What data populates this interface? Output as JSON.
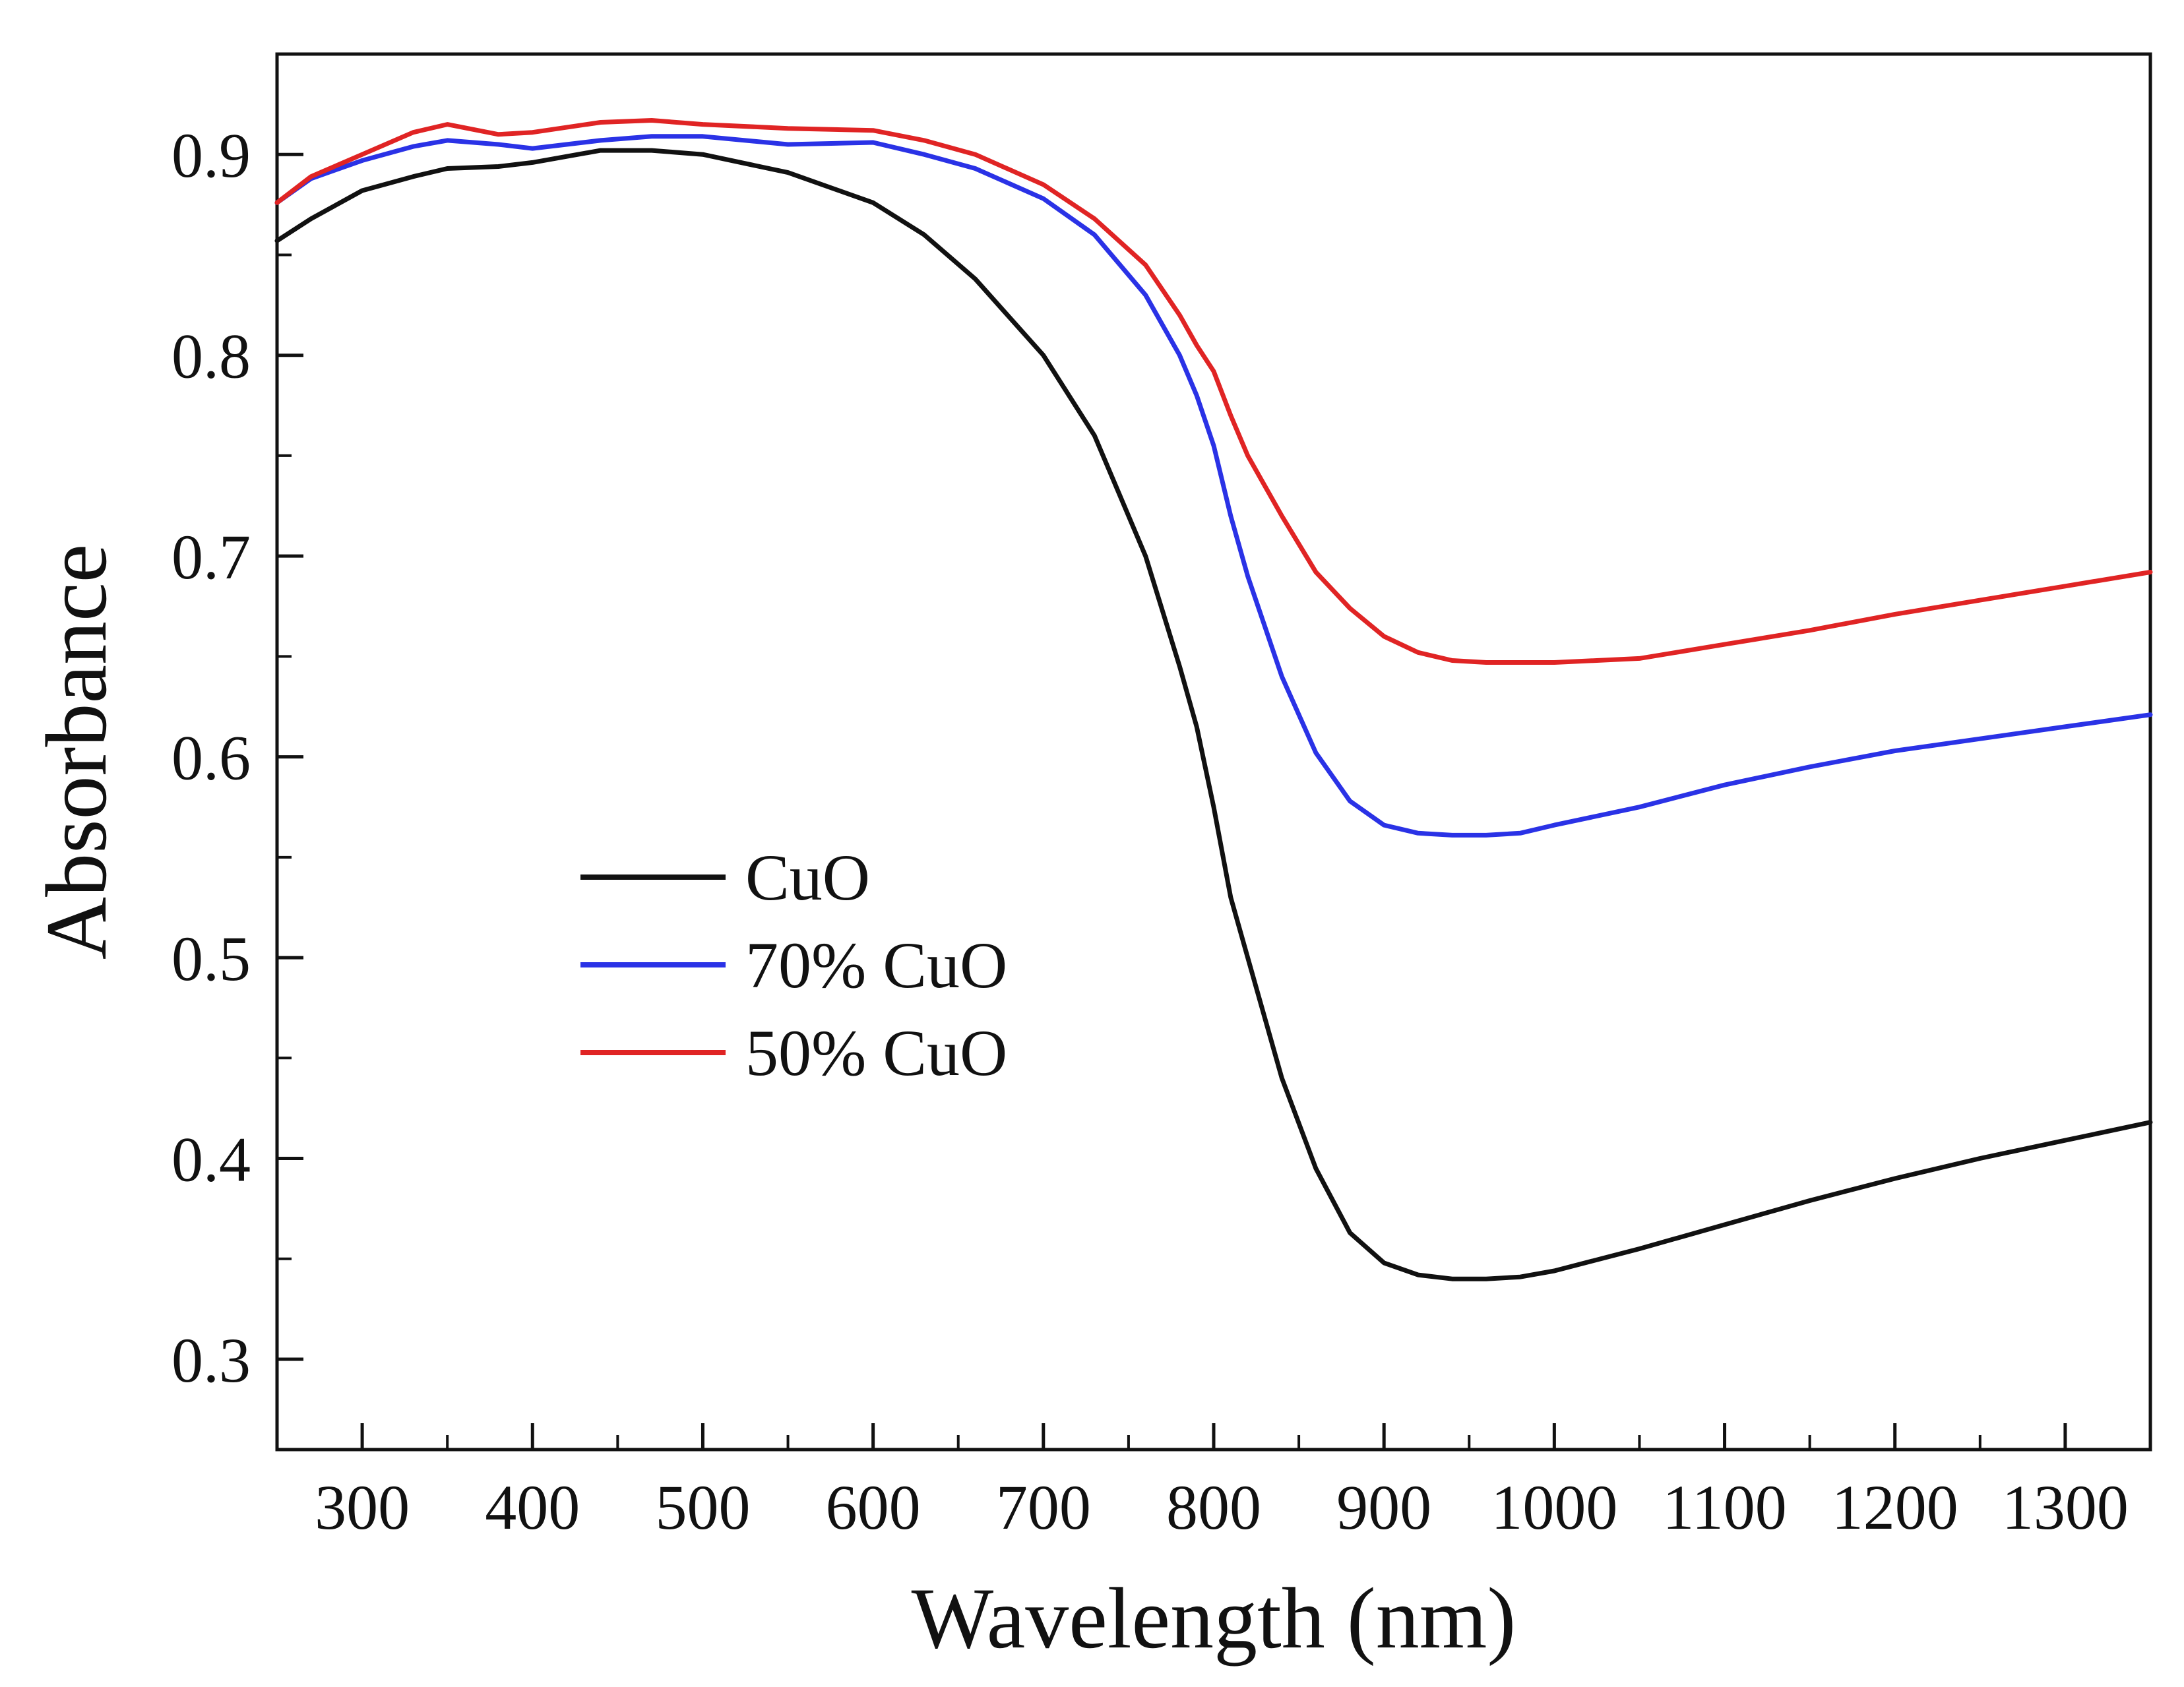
{
  "chart_data": {
    "type": "line",
    "title": "",
    "xlabel": "Wavelength (nm)",
    "ylabel": "Absorbance",
    "xlim": [
      250,
      1350
    ],
    "ylim": [
      0.255,
      0.95
    ],
    "xticks": [
      300,
      400,
      500,
      600,
      700,
      800,
      900,
      1000,
      1100,
      1200,
      1300
    ],
    "xtick_labels": [
      "300",
      "400",
      "500",
      "600",
      "700",
      "800",
      "900",
      "1000",
      "1100",
      "1200",
      "1300"
    ],
    "yticks": [
      0.3,
      0.4,
      0.5,
      0.6,
      0.7,
      0.8,
      0.9
    ],
    "ytick_labels": [
      "0.3",
      "0.4",
      "0.5",
      "0.6",
      "0.7",
      "0.8",
      "0.9"
    ],
    "grid": false,
    "legend_position": "center-left",
    "series": [
      {
        "name": "CuO",
        "color": "#111111",
        "x": [
          250,
          270,
          300,
          330,
          350,
          380,
          400,
          440,
          470,
          500,
          550,
          600,
          630,
          660,
          700,
          730,
          760,
          780,
          790,
          800,
          810,
          820,
          840,
          860,
          880,
          900,
          920,
          940,
          960,
          980,
          1000,
          1050,
          1100,
          1150,
          1200,
          1250,
          1300,
          1350
        ],
        "y": [
          0.857,
          0.868,
          0.882,
          0.889,
          0.893,
          0.894,
          0.896,
          0.902,
          0.902,
          0.9,
          0.891,
          0.876,
          0.86,
          0.838,
          0.8,
          0.76,
          0.7,
          0.645,
          0.615,
          0.575,
          0.53,
          0.5,
          0.44,
          0.395,
          0.363,
          0.348,
          0.342,
          0.34,
          0.34,
          0.341,
          0.344,
          0.355,
          0.367,
          0.379,
          0.39,
          0.4,
          0.409,
          0.418
        ]
      },
      {
        "name": "70% CuO",
        "color": "#2a32e6",
        "x": [
          250,
          270,
          300,
          330,
          350,
          380,
          400,
          440,
          470,
          500,
          550,
          600,
          630,
          660,
          700,
          730,
          760,
          780,
          790,
          800,
          810,
          820,
          840,
          860,
          880,
          900,
          920,
          940,
          960,
          980,
          1000,
          1050,
          1100,
          1150,
          1200,
          1250,
          1300,
          1350
        ],
        "y": [
          0.876,
          0.888,
          0.897,
          0.904,
          0.907,
          0.905,
          0.903,
          0.907,
          0.909,
          0.909,
          0.905,
          0.906,
          0.9,
          0.893,
          0.878,
          0.86,
          0.83,
          0.8,
          0.78,
          0.755,
          0.72,
          0.69,
          0.64,
          0.602,
          0.578,
          0.566,
          0.562,
          0.561,
          0.561,
          0.562,
          0.566,
          0.575,
          0.586,
          0.595,
          0.603,
          0.609,
          0.615,
          0.621
        ]
      },
      {
        "name": "50% CuO",
        "color": "#e02424",
        "x": [
          250,
          270,
          300,
          330,
          350,
          380,
          400,
          440,
          470,
          500,
          550,
          600,
          630,
          660,
          700,
          730,
          760,
          780,
          790,
          800,
          810,
          820,
          840,
          860,
          880,
          900,
          920,
          940,
          960,
          980,
          1000,
          1050,
          1100,
          1150,
          1200,
          1250,
          1300,
          1350
        ],
        "y": [
          0.876,
          0.889,
          0.9,
          0.911,
          0.915,
          0.91,
          0.911,
          0.916,
          0.917,
          0.915,
          0.913,
          0.912,
          0.907,
          0.9,
          0.885,
          0.868,
          0.845,
          0.82,
          0.805,
          0.792,
          0.77,
          0.75,
          0.72,
          0.692,
          0.674,
          0.66,
          0.652,
          0.648,
          0.647,
          0.647,
          0.647,
          0.649,
          0.656,
          0.663,
          0.671,
          0.678,
          0.685,
          0.692
        ]
      }
    ]
  }
}
